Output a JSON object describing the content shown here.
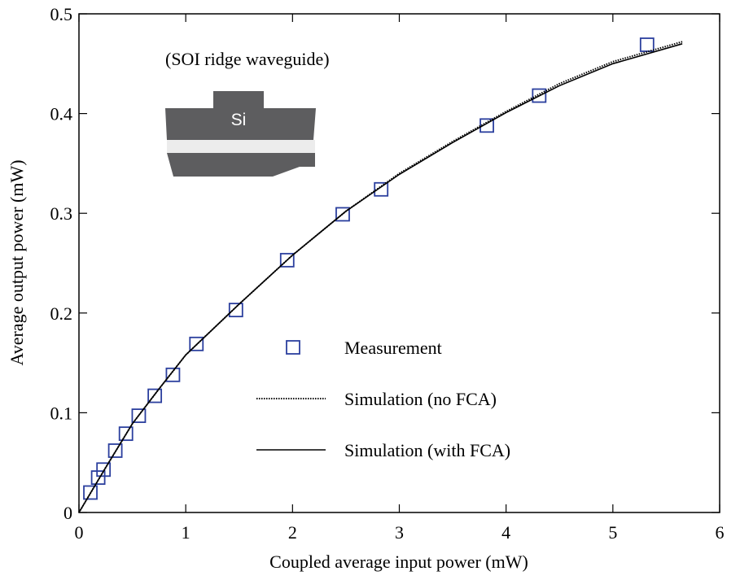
{
  "chart_data": {
    "type": "line",
    "xlabel": "Coupled average input power (mW)",
    "ylabel": "Average output power (mW)",
    "annotations": [
      "(SOI ridge waveguide)",
      "Si"
    ],
    "xlim": [
      0,
      6
    ],
    "xticks": [
      0,
      1,
      2,
      3,
      4,
      5,
      6
    ],
    "ylim": [
      0,
      0.5
    ],
    "yticks": [
      0,
      0.1,
      0.2,
      0.3,
      0.4,
      0.5
    ],
    "series": [
      {
        "name": "Measurement",
        "color": "#2b3f9e",
        "style": "marker",
        "x": [
          0.107,
          0.18,
          0.23,
          0.34,
          0.44,
          0.56,
          0.71,
          0.88,
          1.1,
          1.47,
          1.95,
          2.47,
          2.83,
          3.82,
          4.31,
          5.32
        ],
        "values": [
          0.02,
          0.035,
          0.043,
          0.062,
          0.079,
          0.097,
          0.117,
          0.138,
          0.169,
          0.203,
          0.253,
          0.299,
          0.324,
          0.388,
          0.418,
          0.469
        ]
      },
      {
        "name": "Simulation (no FCA)",
        "color": "#000000",
        "style": "dotted",
        "x": [
          0,
          0.25,
          0.5,
          0.75,
          1,
          1.5,
          2,
          2.5,
          3,
          3.5,
          4,
          4.5,
          5,
          5.65
        ],
        "values": [
          0,
          0.045,
          0.089,
          0.124,
          0.158,
          0.209,
          0.258,
          0.302,
          0.34,
          0.372,
          0.402,
          0.43,
          0.452,
          0.472
        ]
      },
      {
        "name": "Simulation (with FCA)",
        "color": "#000000",
        "style": "solid",
        "x": [
          0,
          0.25,
          0.5,
          0.75,
          1,
          1.5,
          2,
          2.5,
          3,
          3.5,
          4,
          4.5,
          5,
          5.65
        ],
        "values": [
          0,
          0.045,
          0.089,
          0.124,
          0.158,
          0.209,
          0.258,
          0.302,
          0.339,
          0.371,
          0.401,
          0.428,
          0.45,
          0.47
        ]
      }
    ]
  }
}
